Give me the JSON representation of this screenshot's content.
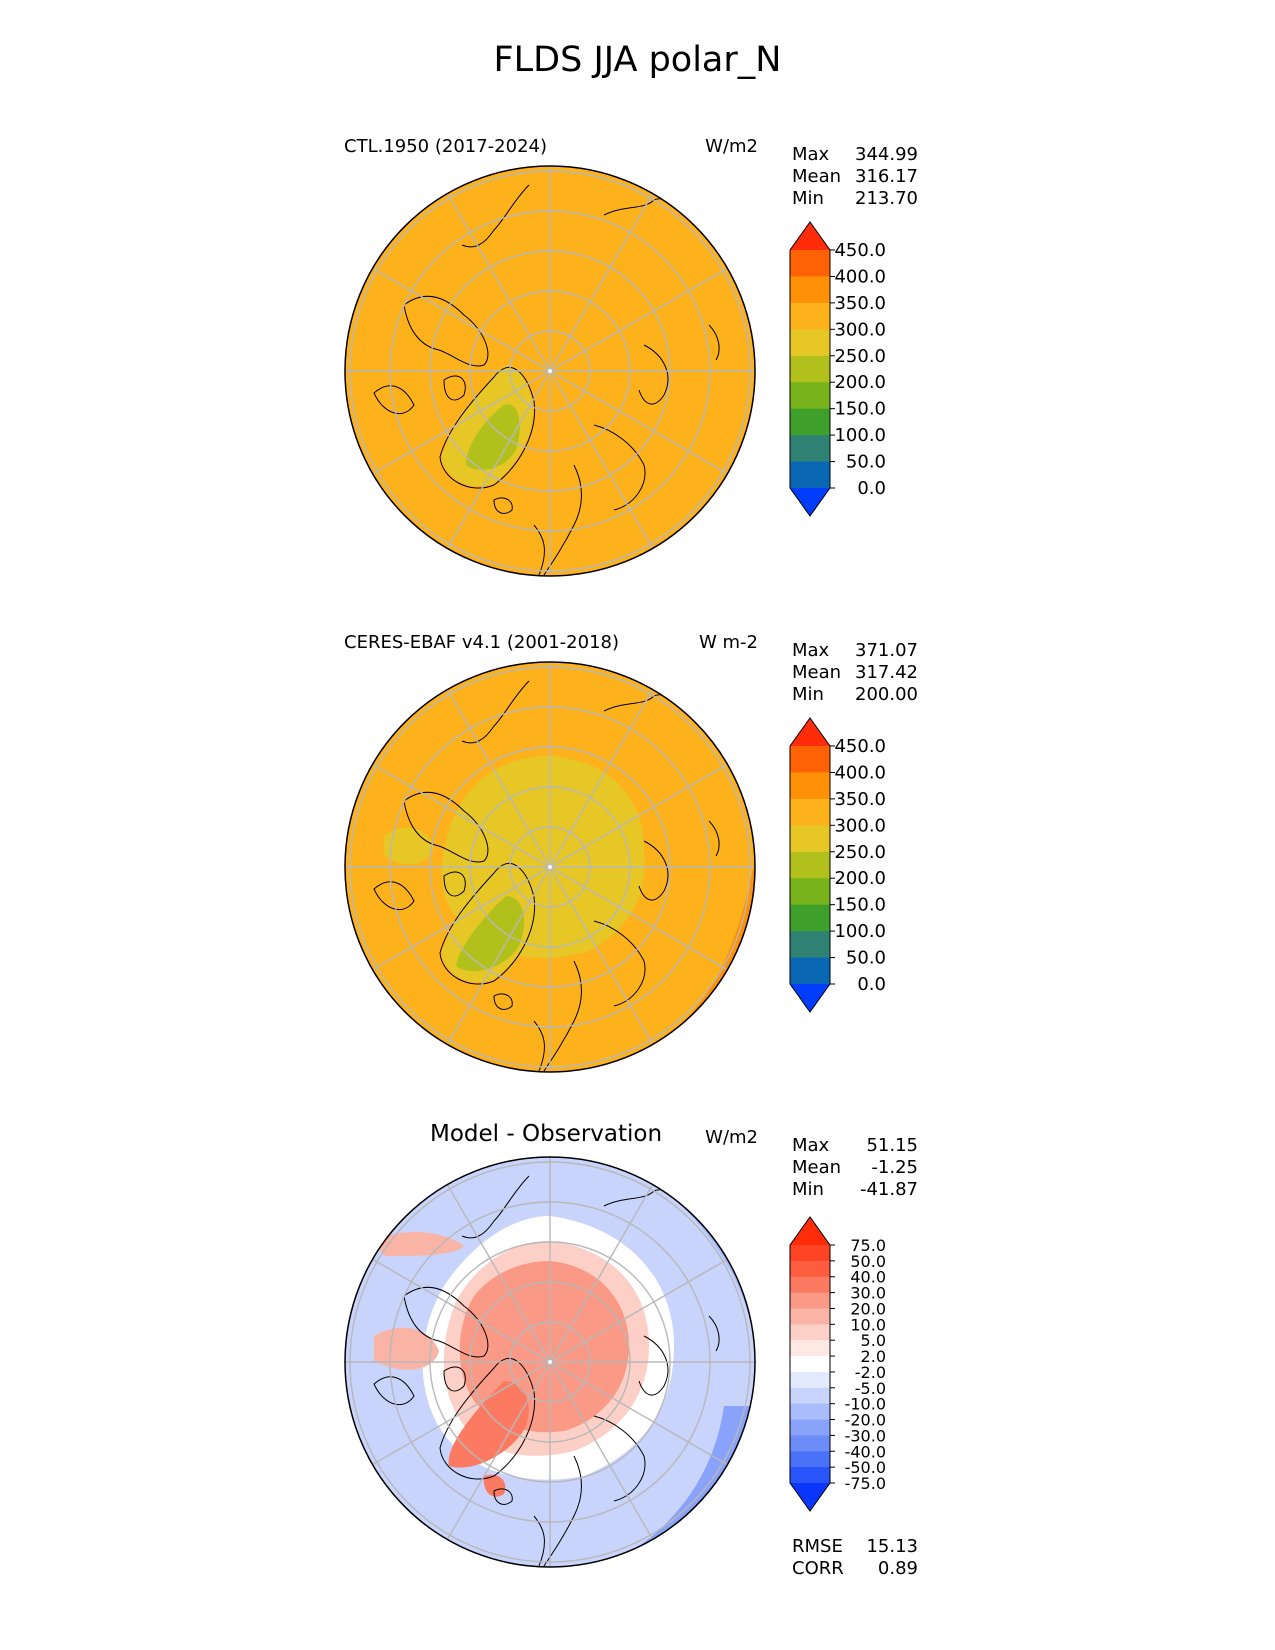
{
  "page": {
    "title": "FLDS JJA polar_N"
  },
  "panels": [
    {
      "title": "CTL.1950 (2017-2024)",
      "units": "W/m2",
      "stats": [
        {
          "label": "Max",
          "value": "344.99"
        },
        {
          "label": "Mean",
          "value": "316.17"
        },
        {
          "label": "Min",
          "value": "213.70"
        }
      ],
      "colorbar": {
        "ticks": [
          "450.0",
          "400.0",
          "350.0",
          "300.0",
          "250.0",
          "200.0",
          "150.0",
          "100.0",
          "50.0",
          "0.0"
        ],
        "colors": [
          "#ff2c0a",
          "#ff6205",
          "#ff9107",
          "#fdb21b",
          "#e6c726",
          "#b2c01c",
          "#78b31b",
          "#3f9f2b",
          "#2f8273",
          "#0a67b3",
          "#003cfb"
        ]
      }
    },
    {
      "title": "CERES-EBAF v4.1 (2001-2018)",
      "units": "W m-2",
      "stats": [
        {
          "label": "Max",
          "value": "371.07"
        },
        {
          "label": "Mean",
          "value": "317.42"
        },
        {
          "label": "Min",
          "value": "200.00"
        }
      ],
      "colorbar": {
        "ticks": [
          "450.0",
          "400.0",
          "350.0",
          "300.0",
          "250.0",
          "200.0",
          "150.0",
          "100.0",
          "50.0",
          "0.0"
        ],
        "colors": [
          "#ff2c0a",
          "#ff6205",
          "#ff9107",
          "#fdb21b",
          "#e6c726",
          "#b2c01c",
          "#78b31b",
          "#3f9f2b",
          "#2f8273",
          "#0a67b3",
          "#003cfb"
        ]
      }
    },
    {
      "title": "Model - Observation",
      "units": "W/m2",
      "stats": [
        {
          "label": "Max",
          "value": "51.15"
        },
        {
          "label": "Mean",
          "value": "-1.25"
        },
        {
          "label": "Min",
          "value": "-41.87"
        }
      ],
      "colorbar": {
        "ticks": [
          "75.0",
          "50.0",
          "40.0",
          "30.0",
          "20.0",
          "10.0",
          "5.0",
          "2.0",
          "-2.0",
          "-5.0",
          "-10.0",
          "-20.0",
          "-30.0",
          "-40.0",
          "-50.0",
          "-75.0"
        ],
        "colors": [
          "#ff2c0a",
          "#fe4425",
          "#fd5c3f",
          "#fb7a61",
          "#fa9a86",
          "#fab4a6",
          "#fcd0c7",
          "#fde8e3",
          "#ffffff",
          "#e4eafd",
          "#c8d4fc",
          "#a9bcfb",
          "#8aa3fa",
          "#6d8cf8",
          "#4a72f8",
          "#2854fa",
          "#0a36fb"
        ]
      },
      "extra_stats": [
        {
          "label": "RMSE",
          "value": "15.13"
        },
        {
          "label": "CORR",
          "value": "0.89"
        }
      ]
    }
  ]
}
